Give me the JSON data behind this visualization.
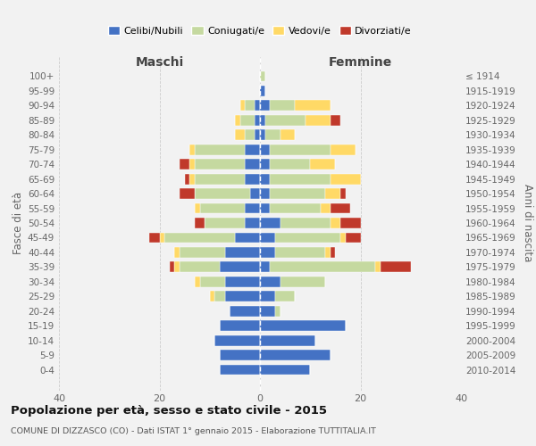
{
  "age_groups": [
    "0-4",
    "5-9",
    "10-14",
    "15-19",
    "20-24",
    "25-29",
    "30-34",
    "35-39",
    "40-44",
    "45-49",
    "50-54",
    "55-59",
    "60-64",
    "65-69",
    "70-74",
    "75-79",
    "80-84",
    "85-89",
    "90-94",
    "95-99",
    "100+"
  ],
  "birth_years": [
    "2010-2014",
    "2005-2009",
    "2000-2004",
    "1995-1999",
    "1990-1994",
    "1985-1989",
    "1980-1984",
    "1975-1979",
    "1970-1974",
    "1965-1969",
    "1960-1964",
    "1955-1959",
    "1950-1954",
    "1945-1949",
    "1940-1944",
    "1935-1939",
    "1930-1934",
    "1925-1929",
    "1920-1924",
    "1915-1919",
    "≤ 1914"
  ],
  "colors": {
    "celibe": "#4472C4",
    "coniugato": "#c5d9a0",
    "vedovo": "#ffd966",
    "divorziato": "#c0392b"
  },
  "maschi": {
    "celibe": [
      8,
      8,
      9,
      8,
      6,
      7,
      7,
      8,
      7,
      5,
      3,
      3,
      2,
      3,
      3,
      3,
      1,
      1,
      1,
      0,
      0
    ],
    "coniugato": [
      0,
      0,
      0,
      0,
      0,
      2,
      5,
      8,
      9,
      14,
      8,
      9,
      11,
      10,
      10,
      10,
      2,
      3,
      2,
      0,
      0
    ],
    "vedovo": [
      0,
      0,
      0,
      0,
      0,
      1,
      1,
      1,
      1,
      1,
      0,
      1,
      0,
      1,
      1,
      1,
      2,
      1,
      1,
      0,
      0
    ],
    "divorziato": [
      0,
      0,
      0,
      0,
      0,
      0,
      0,
      1,
      0,
      2,
      2,
      0,
      3,
      1,
      2,
      0,
      0,
      0,
      0,
      0,
      0
    ]
  },
  "femmine": {
    "celibe": [
      10,
      14,
      11,
      17,
      3,
      3,
      4,
      2,
      3,
      3,
      4,
      2,
      2,
      2,
      2,
      2,
      1,
      1,
      2,
      1,
      0
    ],
    "coniugato": [
      0,
      0,
      0,
      0,
      1,
      4,
      9,
      21,
      10,
      13,
      10,
      10,
      11,
      12,
      8,
      12,
      3,
      8,
      5,
      0,
      1
    ],
    "vedovo": [
      0,
      0,
      0,
      0,
      0,
      0,
      0,
      1,
      1,
      1,
      2,
      2,
      3,
      6,
      5,
      5,
      3,
      5,
      7,
      0,
      0
    ],
    "divorziato": [
      0,
      0,
      0,
      0,
      0,
      0,
      0,
      6,
      1,
      3,
      4,
      4,
      1,
      0,
      0,
      0,
      0,
      2,
      0,
      0,
      0
    ]
  },
  "title": "Popolazione per età, sesso e stato civile - 2015",
  "subtitle": "COMUNE DI DIZZASCO (CO) - Dati ISTAT 1° gennaio 2015 - Elaborazione TUTTITALIA.IT",
  "ylabel_left": "Fasce di età",
  "ylabel_right": "Anni di nascita",
  "xlim": [
    -40,
    40
  ],
  "maschi_label": "Maschi",
  "femmine_label": "Femmine",
  "legend_labels": [
    "Celibi/Nubili",
    "Coniugati/e",
    "Vedovi/e",
    "Divorziati/e"
  ],
  "background_color": "#f2f2f2",
  "grid_color": "#cccccc"
}
